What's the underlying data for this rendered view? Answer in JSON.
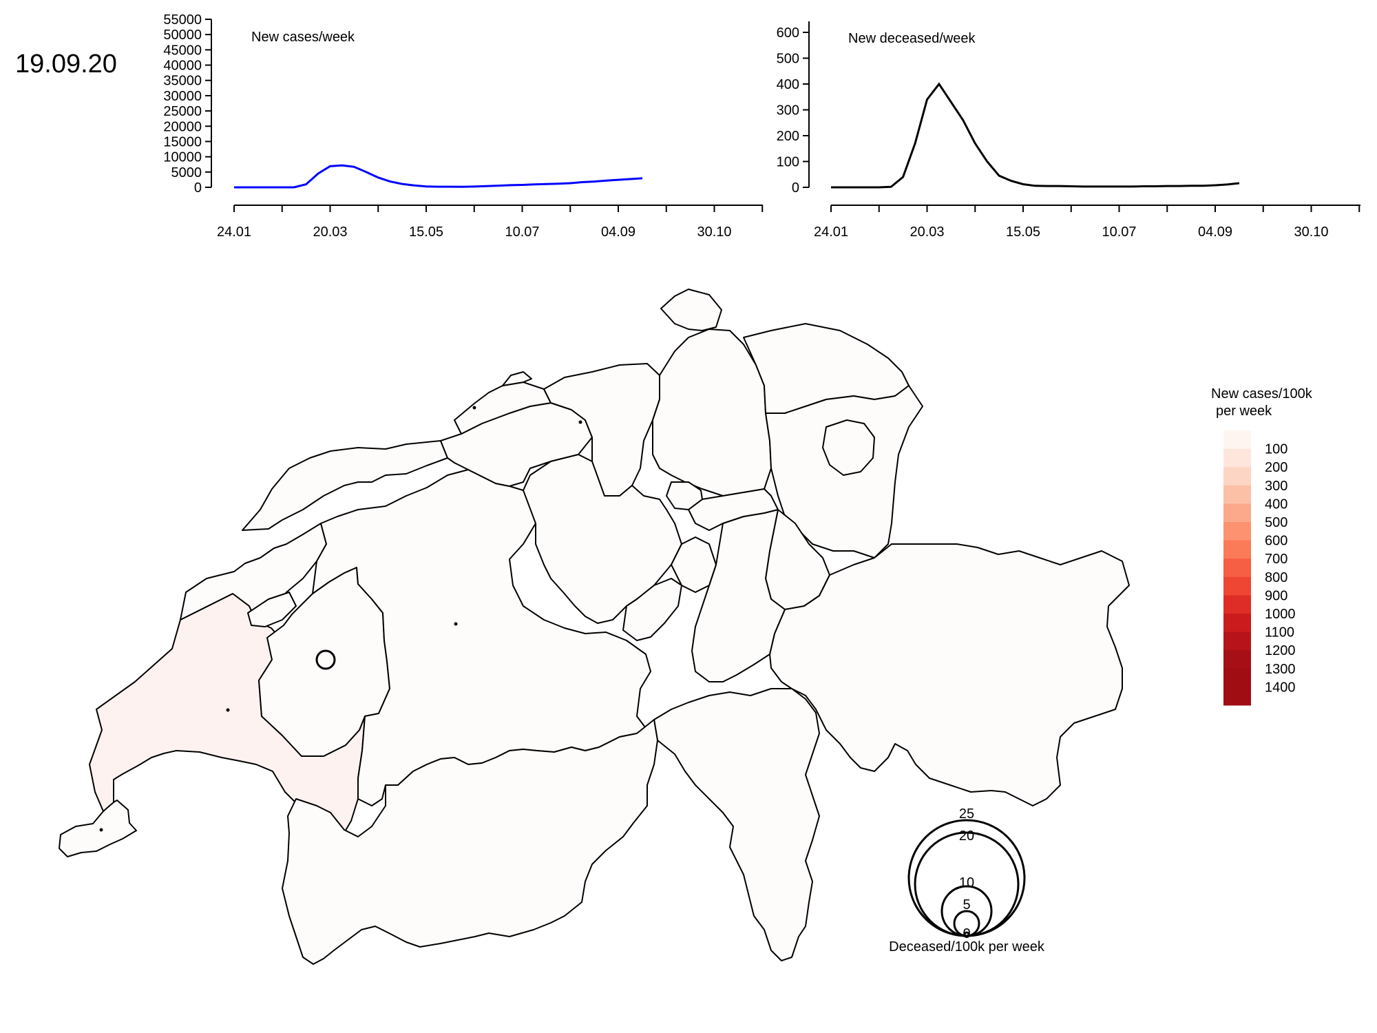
{
  "date_label": "19.09.20",
  "x_tick_labels": [
    "24.01",
    "20.03",
    "15.05",
    "10.07",
    "04.09",
    "30.10"
  ],
  "chart_data": [
    {
      "type": "line",
      "title": "New cases/week",
      "xlabel": "",
      "ylabel": "",
      "x_ticks": [
        "24.01",
        "20.03",
        "15.05",
        "10.07",
        "04.09",
        "30.10"
      ],
      "y_ticks": [
        0,
        5000,
        10000,
        15000,
        20000,
        25000,
        30000,
        35000,
        40000,
        45000,
        50000,
        55000
      ],
      "ylim": [
        0,
        55000
      ],
      "color": "#0000ff",
      "x": [
        "24.01",
        "31.01",
        "07.02",
        "14.02",
        "21.02",
        "28.02",
        "06.03",
        "13.03",
        "20.03",
        "27.03",
        "03.04",
        "10.04",
        "17.04",
        "24.04",
        "01.05",
        "08.05",
        "15.05",
        "22.05",
        "29.05",
        "05.06",
        "12.06",
        "19.06",
        "26.06",
        "03.07",
        "10.07",
        "17.07",
        "24.07",
        "31.07",
        "07.08",
        "14.08",
        "21.08",
        "28.08",
        "04.09",
        "11.09",
        "19.09"
      ],
      "values": [
        0,
        0,
        0,
        0,
        0,
        0,
        1000,
        4500,
        6900,
        7200,
        6700,
        5000,
        3200,
        1900,
        1100,
        600,
        300,
        200,
        200,
        150,
        250,
        400,
        550,
        700,
        800,
        950,
        1050,
        1200,
        1350,
        1700,
        1900,
        2200,
        2450,
        2700,
        2950
      ]
    },
    {
      "type": "line",
      "title": "New deceased/week",
      "xlabel": "",
      "ylabel": "",
      "x_ticks": [
        "24.01",
        "20.03",
        "15.05",
        "10.07",
        "04.09",
        "30.10"
      ],
      "y_ticks": [
        0,
        100,
        200,
        300,
        400,
        500,
        600
      ],
      "ylim": [
        0,
        600
      ],
      "color": "#000000",
      "x": [
        "24.01",
        "31.01",
        "07.02",
        "14.02",
        "21.02",
        "28.02",
        "06.03",
        "13.03",
        "20.03",
        "27.03",
        "03.04",
        "10.04",
        "17.04",
        "24.04",
        "01.05",
        "08.05",
        "15.05",
        "22.05",
        "29.05",
        "05.06",
        "12.06",
        "19.06",
        "26.06",
        "03.07",
        "10.07",
        "17.07",
        "24.07",
        "31.07",
        "07.08",
        "14.08",
        "21.08",
        "28.08",
        "04.09",
        "11.09",
        "19.09"
      ],
      "values": [
        0,
        0,
        0,
        0,
        0,
        2,
        40,
        170,
        340,
        400,
        330,
        260,
        170,
        100,
        45,
        25,
        12,
        6,
        5,
        5,
        4,
        3,
        3,
        3,
        3,
        3,
        4,
        4,
        5,
        5,
        6,
        6,
        8,
        11,
        16
      ]
    }
  ],
  "map": {
    "legend_title_line1": "New cases/100k",
    "legend_title_line2": "per week",
    "legend_labels": [
      "100",
      "200",
      "300",
      "400",
      "500",
      "600",
      "700",
      "800",
      "900",
      "1000",
      "1100",
      "1200",
      "1300",
      "1400"
    ],
    "legend_colors": [
      "#fff5f0",
      "#fee6dd",
      "#fdd5c4",
      "#fcc0a7",
      "#fca98b",
      "#fc926f",
      "#fb7a57",
      "#f65f43",
      "#ee4633",
      "#de2d26",
      "#cb1c1d",
      "#b71419",
      "#a50f15",
      "#a00e14",
      "#a00e14"
    ],
    "fill_low": "#fefbfb",
    "fill_higher": "#fdf2ef",
    "bubble_legend_title": "Deceased/100k per week",
    "bubble_values": [
      "25",
      "20",
      "10",
      "5",
      "0"
    ],
    "bubble_marker_value": 1.5
  }
}
